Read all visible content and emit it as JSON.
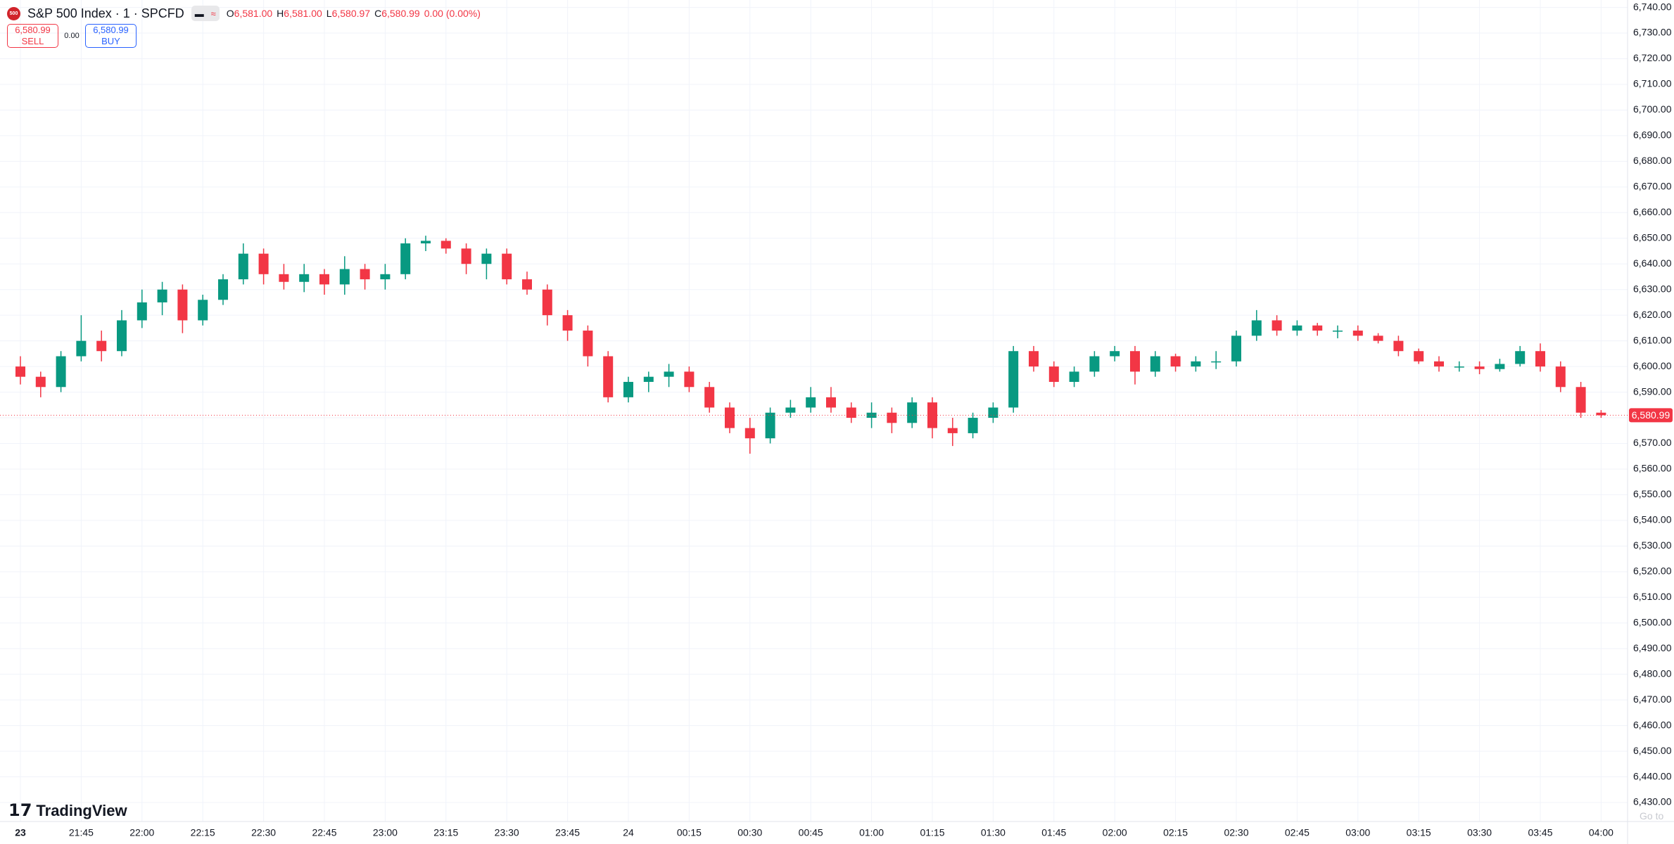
{
  "header": {
    "symbol": "S&P 500 Index · 1 · SPCFD",
    "ohlc": [
      {
        "key": "O",
        "value": "6,581.00"
      },
      {
        "key": "H",
        "value": "6,581.00"
      },
      {
        "key": "L",
        "value": "6,580.97"
      },
      {
        "key": "C",
        "value": "6,580.99"
      }
    ],
    "change": "0.00 (0.00%)",
    "sell_price": "6,580.99",
    "sell": "SELL",
    "spread": "0.00",
    "buy_price": "6,580.99",
    "buy": "BUY"
  },
  "brand": "TradingView",
  "go_to": "Go to",
  "chart_data": {
    "type": "candlestick",
    "up_color": "#089981",
    "down_color": "#f23645",
    "grid": true,
    "open": [
      6600,
      6596,
      6592,
      6604,
      6610,
      6606,
      6618,
      6625,
      6630,
      6618,
      6626,
      6634,
      6644,
      6636,
      6633,
      6636,
      6632,
      6638,
      6634,
      6636,
      6648,
      6649,
      6646,
      6640,
      6644,
      6634,
      6630,
      6620,
      6614,
      6604,
      6588,
      6594,
      6596,
      6598,
      6592,
      6584,
      6576,
      6572,
      6582,
      6584,
      6588,
      6584,
      6580,
      6582,
      6578,
      6586,
      6576,
      6574,
      6580,
      6584,
      6606,
      6600,
      6594,
      6598,
      6604,
      6606,
      6598,
      6604,
      6600,
      6602,
      6602,
      6612,
      6618,
      6614,
      6616,
      6614,
      6614,
      6612,
      6610,
      6606,
      6602,
      6600,
      6600,
      6599,
      6601,
      6606,
      6600,
      6592,
      6582
    ],
    "high": [
      6604,
      6598,
      6606,
      6620,
      6614,
      6622,
      6630,
      6633,
      6632,
      6628,
      6636,
      6648,
      6646,
      6640,
      6640,
      6638,
      6643,
      6640,
      6640,
      6650,
      6651,
      6650,
      6648,
      6646,
      6646,
      6637,
      6632,
      6622,
      6616,
      6606,
      6596,
      6598,
      6601,
      6600,
      6594,
      6586,
      6580,
      6584,
      6587,
      6592,
      6592,
      6586,
      6586,
      6584,
      6588,
      6588,
      6580,
      6582,
      6586,
      6608,
      6608,
      6602,
      6600,
      6606,
      6608,
      6608,
      6606,
      6605,
      6604,
      6606,
      6614,
      6622,
      6620,
      6618,
      6617,
      6616,
      6616,
      6613,
      6612,
      6607,
      6604,
      6602,
      6602,
      6603,
      6608,
      6609,
      6602,
      6594,
      6583
    ],
    "low": [
      6593,
      6588,
      6590,
      6602,
      6602,
      6604,
      6615,
      6620,
      6613,
      6616,
      6624,
      6632,
      6632,
      6630,
      6629,
      6628,
      6628,
      6630,
      6630,
      6634,
      6645,
      6644,
      6636,
      6634,
      6632,
      6628,
      6616,
      6610,
      6600,
      6586,
      6586,
      6590,
      6592,
      6590,
      6582,
      6574,
      6566,
      6570,
      6580,
      6582,
      6582,
      6578,
      6576,
      6574,
      6576,
      6572,
      6569,
      6572,
      6578,
      6582,
      6598,
      6592,
      6592,
      6596,
      6602,
      6593,
      6596,
      6598,
      6598,
      6599,
      6600,
      6610,
      6612,
      6612,
      6612,
      6611,
      6610,
      6609,
      6604,
      6601,
      6598,
      6598,
      6597,
      6598,
      6600,
      6598,
      6590,
      6580,
      6580
    ],
    "close": [
      6596,
      6592,
      6604,
      6610,
      6606,
      6618,
      6625,
      6630,
      6618,
      6626,
      6634,
      6644,
      6636,
      6633,
      6636,
      6632,
      6638,
      6634,
      6636,
      6648,
      6649,
      6646,
      6640,
      6644,
      6634,
      6630,
      6620,
      6614,
      6604,
      6588,
      6594,
      6596,
      6598,
      6592,
      6584,
      6576,
      6572,
      6582,
      6584,
      6588,
      6584,
      6580,
      6582,
      6578,
      6586,
      6576,
      6574,
      6580,
      6584,
      6606,
      6600,
      6594,
      6598,
      6604,
      6606,
      6598,
      6604,
      6600,
      6602,
      6602,
      6612,
      6618,
      6614,
      6616,
      6614,
      6614,
      6612,
      6610,
      6606,
      6602,
      6600,
      6600,
      6599,
      6601,
      6606,
      6600,
      6592,
      6582,
      6580.99
    ],
    "ylim": [
      6422.6,
      6742.9
    ],
    "yticks": [
      {
        "value": 6430,
        "label": "6,430.00"
      },
      {
        "value": 6440,
        "label": "6,440.00"
      },
      {
        "value": 6450,
        "label": "6,450.00"
      },
      {
        "value": 6460,
        "label": "6,460.00"
      },
      {
        "value": 6470,
        "label": "6,470.00"
      },
      {
        "value": 6480,
        "label": "6,480.00"
      },
      {
        "value": 6490,
        "label": "6,490.00"
      },
      {
        "value": 6500,
        "label": "6,500.00"
      },
      {
        "value": 6510,
        "label": "6,510.00"
      },
      {
        "value": 6520,
        "label": "6,520.00"
      },
      {
        "value": 6530,
        "label": "6,530.00"
      },
      {
        "value": 6540,
        "label": "6,540.00"
      },
      {
        "value": 6550,
        "label": "6,550.00"
      },
      {
        "value": 6560,
        "label": "6,560.00"
      },
      {
        "value": 6570,
        "label": "6,570.00"
      },
      {
        "value": 6580,
        "label": "6,580.00"
      },
      {
        "value": 6590,
        "label": "6,590.00"
      },
      {
        "value": 6600,
        "label": "6,600.00"
      },
      {
        "value": 6610,
        "label": "6,610.00"
      },
      {
        "value": 6620,
        "label": "6,620.00"
      },
      {
        "value": 6630,
        "label": "6,630.00"
      },
      {
        "value": 6640,
        "label": "6,640.00"
      },
      {
        "value": 6650,
        "label": "6,650.00"
      },
      {
        "value": 6660,
        "label": "6,660.00"
      },
      {
        "value": 6670,
        "label": "6,670.00"
      },
      {
        "value": 6680,
        "label": "6,680.00"
      },
      {
        "value": 6690,
        "label": "6,690.00"
      },
      {
        "value": 6700,
        "label": "6,700.00"
      },
      {
        "value": 6710,
        "label": "6,710.00"
      },
      {
        "value": 6720,
        "label": "6,720.00"
      },
      {
        "value": 6730,
        "label": "6,730.00"
      },
      {
        "value": 6740,
        "label": "6,740.00"
      }
    ],
    "xticks": [
      {
        "value": 0,
        "label": "23"
      },
      {
        "value": 3,
        "label": "21:45"
      },
      {
        "value": 6,
        "label": "22:00"
      },
      {
        "value": 9,
        "label": "22:15"
      },
      {
        "value": 12,
        "label": "22:30"
      },
      {
        "value": 15,
        "label": "22:45"
      },
      {
        "value": 18,
        "label": "23:00"
      },
      {
        "value": 21,
        "label": "23:15"
      },
      {
        "value": 24,
        "label": "23:30"
      },
      {
        "value": 27,
        "label": "23:45"
      },
      {
        "value": 30,
        "label": "24"
      },
      {
        "value": 33,
        "label": "00:15"
      },
      {
        "value": 36,
        "label": "00:30"
      },
      {
        "value": 39,
        "label": "00:45"
      },
      {
        "value": 42,
        "label": "01:00"
      },
      {
        "value": 45,
        "label": "01:15"
      },
      {
        "value": 48,
        "label": "01:30"
      },
      {
        "value": 51,
        "label": "01:45"
      },
      {
        "value": 54,
        "label": "02:00"
      },
      {
        "value": 57,
        "label": "02:15"
      },
      {
        "value": 60,
        "label": "02:30"
      },
      {
        "value": 63,
        "label": "02:45"
      },
      {
        "value": 66,
        "label": "03:00"
      },
      {
        "value": 69,
        "label": "03:15"
      },
      {
        "value": 72,
        "label": "03:30"
      },
      {
        "value": 75,
        "label": "03:45"
      },
      {
        "value": 78,
        "label": "04:00"
      }
    ],
    "last_price": {
      "value": 6580.99,
      "label": "6,580.99"
    },
    "last_color": "#f23645"
  }
}
